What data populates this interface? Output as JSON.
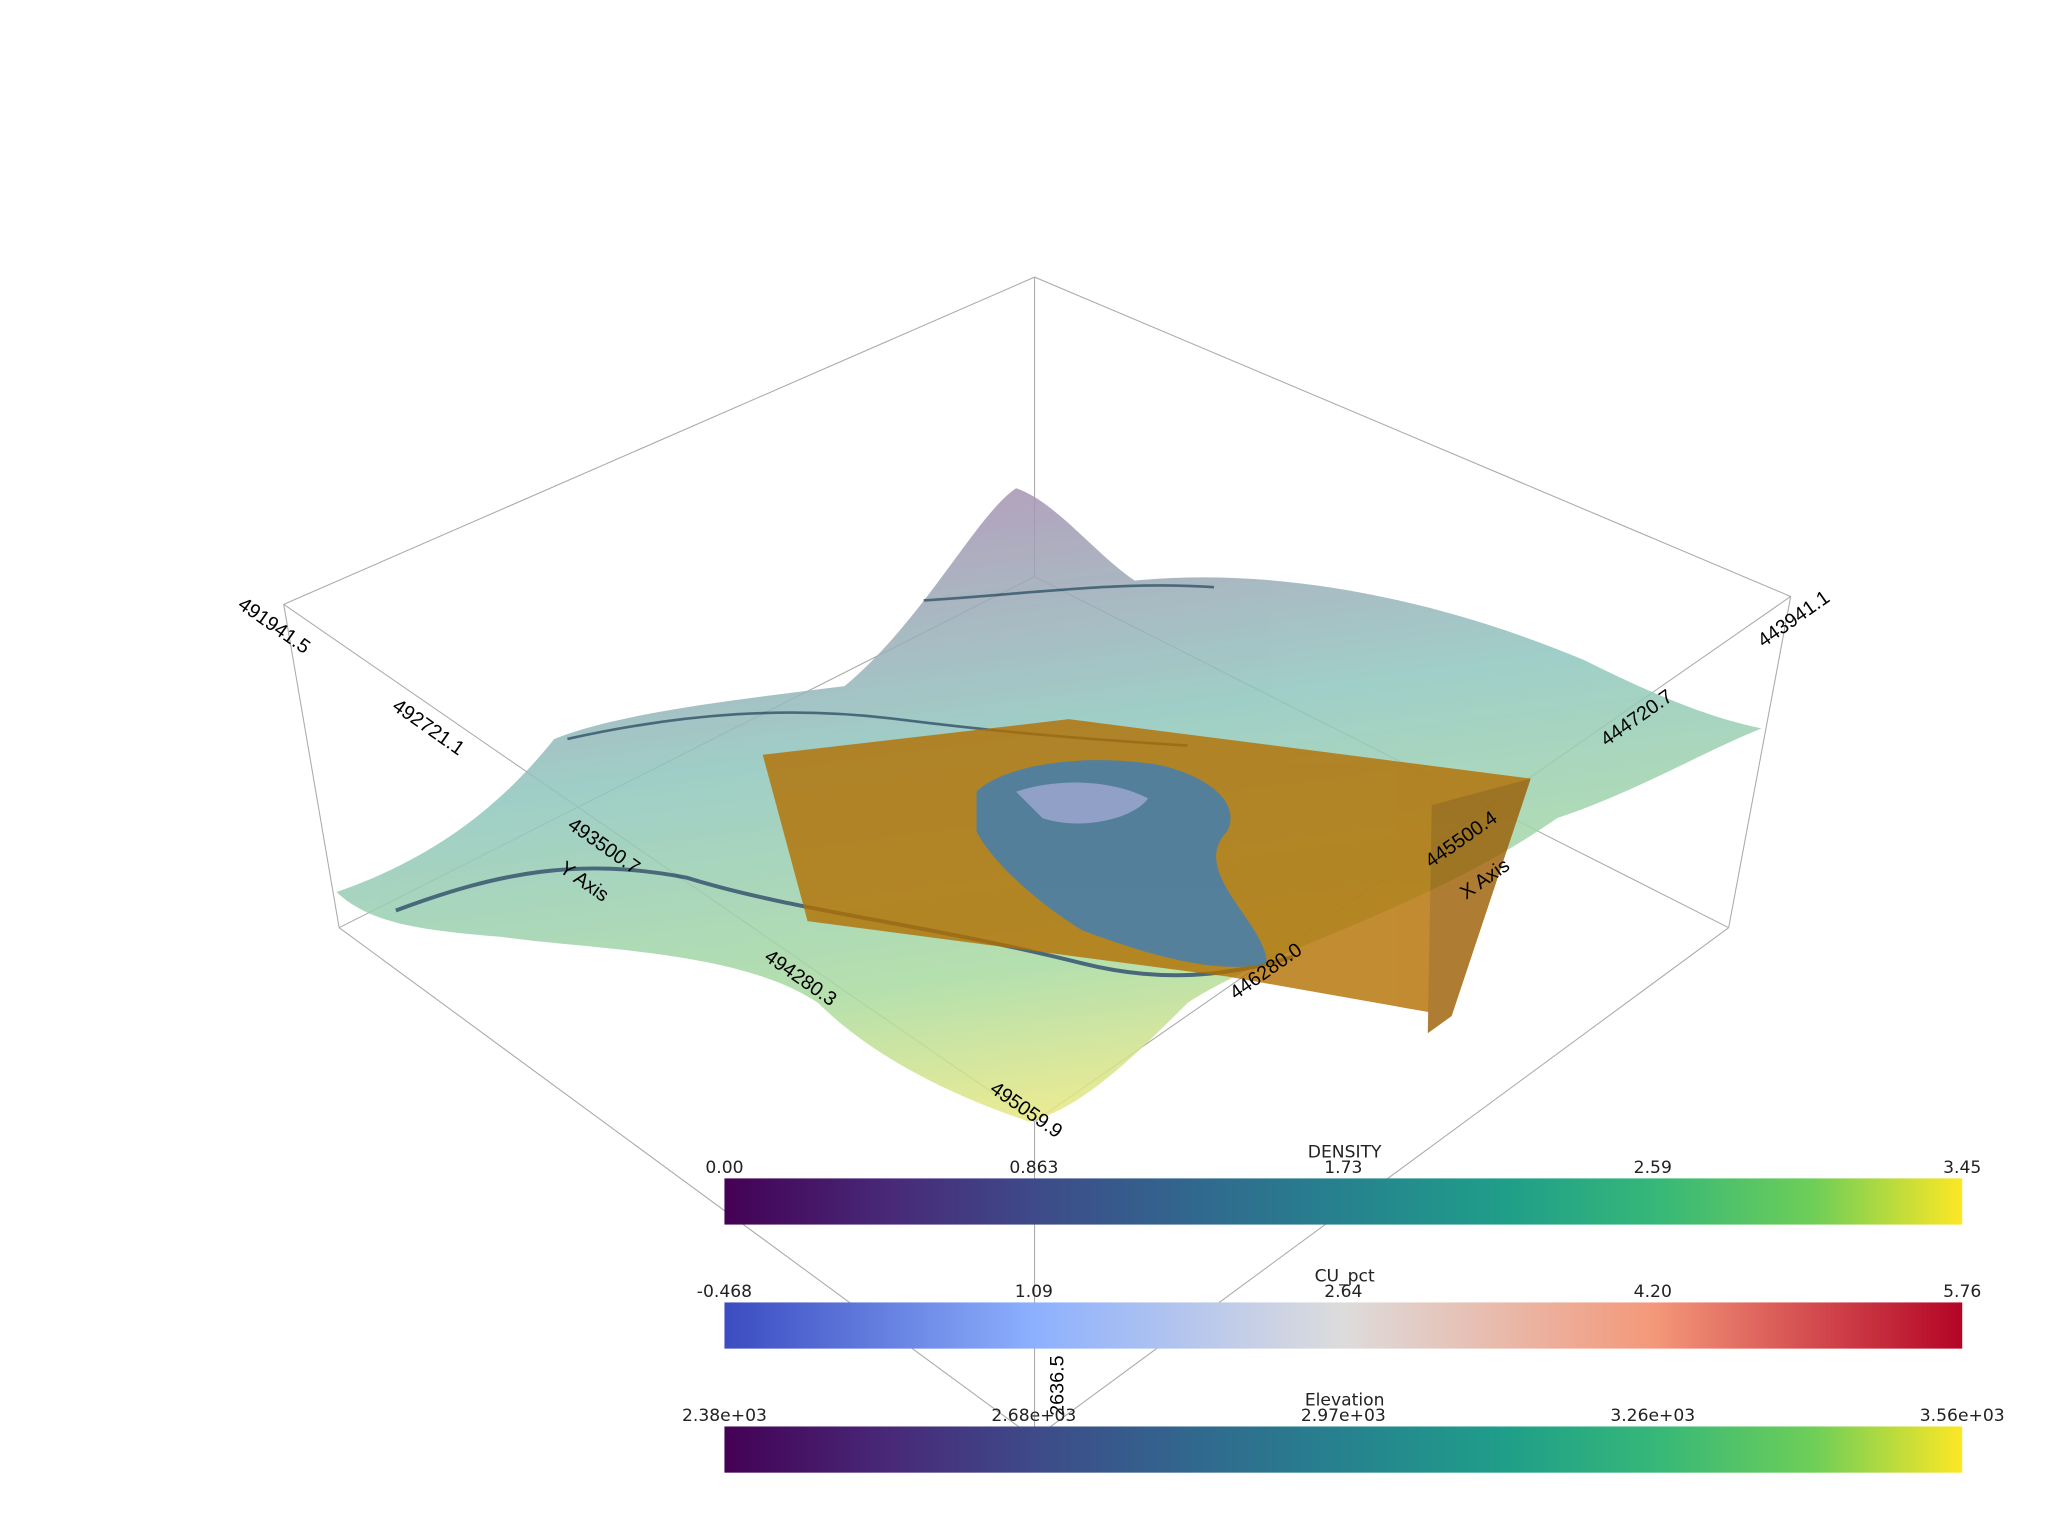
{
  "axes": {
    "x_axis": {
      "title": "X Axis",
      "labels": [
        "443941.1",
        "444720.7",
        "445500.4",
        "446280.0"
      ]
    },
    "y_axis": {
      "title": "Y Axis",
      "labels": [
        "491941.5",
        "492721.1",
        "493500.7",
        "494280.3",
        "495059.9"
      ]
    },
    "z_axis": {
      "labels": [
        "2636.5"
      ]
    }
  },
  "scalar_bars": [
    {
      "title": "DENSITY",
      "labels": [
        "0.00",
        "0.863",
        "1.73",
        "2.59",
        "3.45"
      ]
    },
    {
      "title": "CU_pct",
      "labels": [
        "-0.468",
        "1.09",
        "2.64",
        "4.20",
        "5.76"
      ]
    },
    {
      "title": "Elevation",
      "labels": [
        "2.38e+03",
        "2.68e+03",
        "2.97e+03",
        "3.26e+03",
        "3.56e+03"
      ]
    }
  ]
}
